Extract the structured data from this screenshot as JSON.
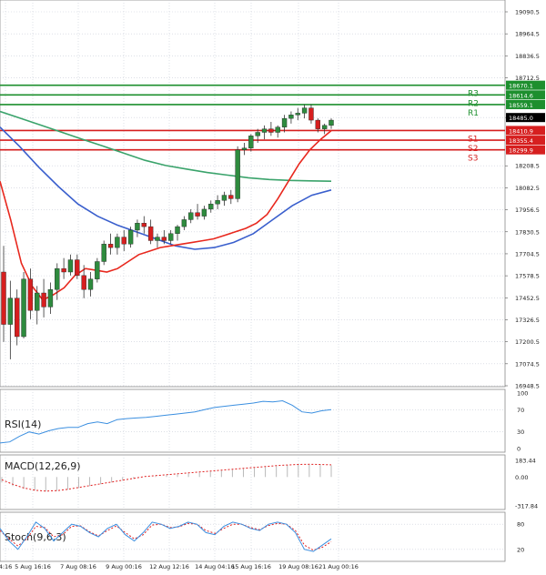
{
  "colors": {
    "bull": "#2e8b3e",
    "bear": "#d61f1f",
    "ma_fast": "#e8281e",
    "ma_mid": "#3a5fcd",
    "ma_slow": "#3aa36b",
    "resistance": "#1d8f2e",
    "support": "#d61f1f",
    "indicator_line": "#3b8fe0",
    "signal_dashed": "#e02020",
    "grid": "#c8ccd8"
  },
  "chart_data": [
    {
      "type": "candlestick",
      "title": "",
      "y_ticks": [
        "19090.5",
        "18964.5",
        "18836.5",
        "18712.5",
        "18485.0",
        "18208.5",
        "18082.5",
        "17956.5",
        "17830.5",
        "17704.5",
        "17578.5",
        "17452.5",
        "17326.5",
        "17200.5",
        "17074.5",
        "16948.5"
      ],
      "ylim": [
        16948.5,
        19090.5
      ],
      "x_ticks": [
        "4:16",
        "5 Aug 16:16",
        "7 Aug 08:16",
        "9 Aug 00:16",
        "12 Aug 12:16",
        "14 Aug 04:16",
        "15 Aug 16:16",
        "19 Aug 08:16",
        "21 Aug 00:16"
      ],
      "levels": [
        {
          "name": "R3",
          "value": 18670.1,
          "label": "18670.1",
          "kind": "resistance"
        },
        {
          "name": "R2",
          "value": 18614.6,
          "label": "18614.6",
          "kind": "resistance"
        },
        {
          "name": "R1",
          "value": 18559.1,
          "label": "18559.1",
          "kind": "resistance"
        },
        {
          "name": "S1",
          "value": 18410.9,
          "label": "18410.9",
          "kind": "support"
        },
        {
          "name": "S2",
          "value": 18355.4,
          "label": "18355.4",
          "kind": "support"
        },
        {
          "name": "S3",
          "value": 18299.9,
          "label": "18299.9",
          "kind": "support"
        }
      ],
      "current_price": "18485.0",
      "candles": [
        [
          17600,
          17750,
          17200,
          17300
        ],
        [
          17300,
          17550,
          17100,
          17450
        ],
        [
          17450,
          17500,
          17180,
          17230
        ],
        [
          17230,
          17600,
          17220,
          17560
        ],
        [
          17560,
          17620,
          17330,
          17380
        ],
        [
          17380,
          17520,
          17300,
          17480
        ],
        [
          17480,
          17560,
          17340,
          17400
        ],
        [
          17400,
          17540,
          17360,
          17500
        ],
        [
          17500,
          17650,
          17440,
          17620
        ],
        [
          17620,
          17680,
          17560,
          17600
        ],
        [
          17600,
          17700,
          17580,
          17670
        ],
        [
          17670,
          17700,
          17560,
          17580
        ],
        [
          17580,
          17640,
          17450,
          17500
        ],
        [
          17500,
          17600,
          17460,
          17560
        ],
        [
          17560,
          17680,
          17540,
          17660
        ],
        [
          17660,
          17780,
          17640,
          17760
        ],
        [
          17760,
          17820,
          17700,
          17740
        ],
        [
          17740,
          17820,
          17700,
          17800
        ],
        [
          17800,
          17840,
          17720,
          17760
        ],
        [
          17760,
          17860,
          17740,
          17840
        ],
        [
          17840,
          17900,
          17800,
          17880
        ],
        [
          17880,
          17920,
          17820,
          17860
        ],
        [
          17860,
          17900,
          17760,
          17780
        ],
        [
          17780,
          17820,
          17740,
          17800
        ],
        [
          17800,
          17840,
          17760,
          17780
        ],
        [
          17780,
          17840,
          17760,
          17820
        ],
        [
          17820,
          17870,
          17780,
          17860
        ],
        [
          17860,
          17920,
          17840,
          17900
        ],
        [
          17900,
          17960,
          17880,
          17940
        ],
        [
          17940,
          17990,
          17900,
          17920
        ],
        [
          17920,
          17980,
          17900,
          17960
        ],
        [
          17960,
          18010,
          17940,
          17990
        ],
        [
          17990,
          18040,
          17960,
          18010
        ],
        [
          18010,
          18060,
          17980,
          18040
        ],
        [
          18040,
          18070,
          17990,
          18020
        ],
        [
          18020,
          18320,
          18000,
          18300
        ],
        [
          18300,
          18340,
          18270,
          18310
        ],
        [
          18310,
          18390,
          18290,
          18380
        ],
        [
          18380,
          18420,
          18340,
          18400
        ],
        [
          18400,
          18440,
          18360,
          18420
        ],
        [
          18420,
          18460,
          18380,
          18400
        ],
        [
          18400,
          18440,
          18370,
          18430
        ],
        [
          18430,
          18500,
          18400,
          18480
        ],
        [
          18480,
          18520,
          18450,
          18500
        ],
        [
          18500,
          18540,
          18470,
          18510
        ],
        [
          18510,
          18560,
          18480,
          18540
        ],
        [
          18540,
          18560,
          18450,
          18470
        ],
        [
          18470,
          18480,
          18400,
          18420
        ],
        [
          18420,
          18450,
          18390,
          18440
        ],
        [
          18440,
          18480,
          18420,
          18470
        ]
      ],
      "ma_fast": [
        18120,
        17900,
        17650,
        17520,
        17440,
        17470,
        17510,
        17580,
        17620,
        17610,
        17600,
        17620,
        17660,
        17700,
        17720,
        17740,
        17750,
        17760,
        17770,
        17780,
        17790,
        17810,
        17830,
        17850,
        17880,
        17930,
        18020,
        18120,
        18220,
        18300,
        18360,
        18410
      ],
      "ma_mid": [
        18430,
        18320,
        18200,
        18090,
        17990,
        17920,
        17870,
        17830,
        17790,
        17750,
        17730,
        17740,
        17770,
        17820,
        17900,
        17980,
        18040,
        18070
      ],
      "ma_slow": [
        18520,
        18480,
        18440,
        18400,
        18360,
        18320,
        18280,
        18240,
        18210,
        18190,
        18170,
        18155,
        18140,
        18130,
        18125,
        18122,
        18120
      ]
    },
    {
      "type": "line",
      "title": "RSI(14)",
      "y_ticks": [
        "100",
        "70",
        "30",
        "0"
      ],
      "ylim": [
        0,
        100
      ],
      "values": [
        10,
        12,
        22,
        30,
        26,
        32,
        36,
        38,
        38,
        45,
        48,
        45,
        52,
        54,
        55,
        56,
        58,
        60,
        62,
        64,
        66,
        70,
        74,
        76,
        78,
        80,
        82,
        85,
        84,
        86,
        78,
        66,
        64,
        68,
        70
      ]
    },
    {
      "type": "bar",
      "title": "MACD(12,26,9)",
      "y_ticks": [
        "183.44",
        "0.00",
        "-317.84"
      ],
      "ylim": [
        -317.84,
        183.44
      ],
      "histogram": [
        -60,
        -100,
        -130,
        -150,
        -160,
        -155,
        -140,
        -120,
        -100,
        -80,
        -60,
        -40,
        -20,
        0,
        10,
        20,
        30,
        40,
        50,
        60,
        70,
        80,
        90,
        100,
        110,
        120,
        130,
        140,
        140,
        135,
        130
      ],
      "signal": [
        -30,
        -80,
        -120,
        -145,
        -155,
        -150,
        -135,
        -115,
        -95,
        -75,
        -55,
        -35,
        -15,
        5,
        15,
        25,
        35,
        45,
        55,
        65,
        75,
        85,
        95,
        105,
        115,
        125,
        132,
        138,
        140,
        138,
        134
      ]
    },
    {
      "type": "line",
      "title": "Stoch(9,6,3)",
      "y_ticks": [
        "80",
        "20"
      ],
      "ylim": [
        0,
        100
      ],
      "k": [
        70,
        40,
        20,
        50,
        85,
        70,
        40,
        60,
        80,
        75,
        60,
        50,
        70,
        80,
        55,
        40,
        60,
        85,
        80,
        70,
        75,
        85,
        80,
        60,
        55,
        75,
        85,
        80,
        70,
        65,
        80,
        85,
        80,
        60,
        20,
        15,
        30,
        45
      ],
      "d": [
        65,
        45,
        28,
        45,
        75,
        72,
        50,
        55,
        75,
        76,
        62,
        52,
        65,
        76,
        60,
        45,
        55,
        78,
        80,
        72,
        74,
        82,
        80,
        65,
        58,
        70,
        80,
        80,
        72,
        67,
        77,
        82,
        80,
        65,
        30,
        18,
        25,
        38
      ]
    }
  ]
}
